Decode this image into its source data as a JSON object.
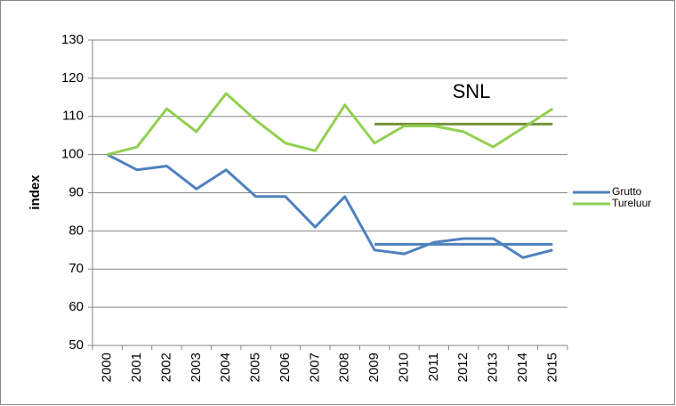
{
  "chart_data": {
    "type": "line",
    "y_label": "index",
    "annotation": "SNL",
    "categories": [
      "2000",
      "2001",
      "2002",
      "2003",
      "2004",
      "2005",
      "2006",
      "2007",
      "2008",
      "2009",
      "2010",
      "2011",
      "2012",
      "2013",
      "2014",
      "2015"
    ],
    "series": [
      {
        "name": "Grutto",
        "color": "#4f81bd",
        "values": [
          100,
          96,
          97,
          91,
          96,
          89,
          89,
          81,
          89,
          75,
          74,
          77,
          78,
          78,
          73,
          75
        ]
      },
      {
        "name": "Tureluur",
        "color": "#92d050",
        "values": [
          100,
          102,
          112,
          106,
          116,
          109,
          103,
          101,
          113,
          103,
          107.5,
          107.5,
          106,
          102,
          107,
          112
        ]
      }
    ],
    "reference_lines": [
      {
        "color": "#4f81bd",
        "values": [
          null,
          null,
          null,
          null,
          null,
          null,
          null,
          null,
          null,
          76.5,
          76.5,
          76.5,
          76.5,
          76.5,
          76.5,
          76.5
        ]
      },
      {
        "color": "#77933c",
        "values": [
          null,
          null,
          null,
          null,
          null,
          null,
          null,
          null,
          null,
          108,
          108,
          108,
          108,
          108,
          108,
          108
        ]
      }
    ],
    "ylim": [
      50,
      130
    ],
    "yticks": [
      50,
      60,
      70,
      80,
      90,
      100,
      110,
      120,
      130
    ],
    "grid": true,
    "legend": "right"
  }
}
